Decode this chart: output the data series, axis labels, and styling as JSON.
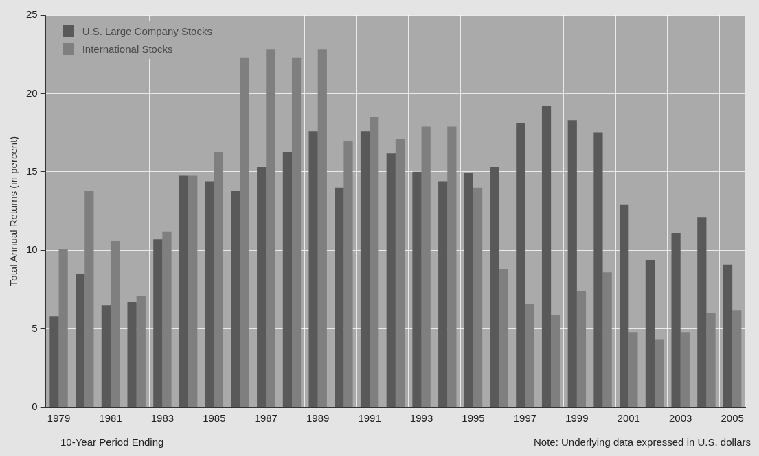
{
  "chart_data": {
    "type": "bar",
    "xlabel": "10-Year Period Ending",
    "ylabel": "Total Annual Returns (in percent)",
    "annotations": [
      "Note: Underlying data expressed in U.S. dollars"
    ],
    "categories": [
      "1979",
      null,
      "1981",
      null,
      "1983",
      null,
      "1985",
      null,
      "1987",
      null,
      "1989",
      null,
      "1991",
      null,
      "1993",
      null,
      "1995",
      null,
      "1997",
      null,
      "1999",
      null,
      "2001",
      null,
      "2003",
      null,
      "2005"
    ],
    "series": [
      {
        "name": "U.S. Large Company Stocks",
        "color": "#595959",
        "values": [
          5.8,
          8.5,
          6.5,
          6.7,
          10.7,
          14.8,
          14.4,
          13.8,
          15.3,
          16.3,
          17.6,
          14.0,
          17.6,
          16.2,
          15.0,
          14.4,
          14.9,
          15.3,
          18.1,
          19.2,
          18.3,
          17.5,
          12.9,
          9.4,
          11.1,
          12.1,
          9.1
        ]
      },
      {
        "name": "International Stocks",
        "color": "#7f7f7f",
        "values": [
          10.1,
          13.8,
          10.6,
          7.1,
          11.2,
          14.8,
          16.3,
          22.3,
          22.8,
          22.3,
          22.8,
          17.0,
          18.5,
          17.1,
          17.9,
          17.9,
          14.0,
          8.8,
          6.6,
          5.9,
          7.4,
          8.6,
          4.8,
          4.3,
          4.8,
          6.0,
          6.2
        ]
      }
    ],
    "ylim": [
      0,
      25
    ],
    "yticks": [
      0,
      5,
      10,
      15,
      20,
      25
    ],
    "grid": true,
    "legend": "top left"
  }
}
